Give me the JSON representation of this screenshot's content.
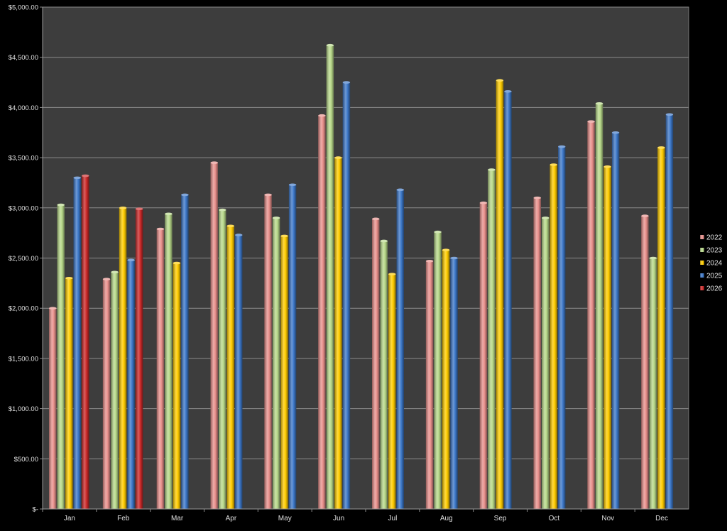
{
  "chart_data": {
    "type": "bar",
    "categories": [
      "Jan",
      "Feb",
      "Mar",
      "Apr",
      "May",
      "Jun",
      "Jul",
      "Aug",
      "Sep",
      "Oct",
      "Nov",
      "Dec"
    ],
    "y_ticks": [
      "$-",
      "$500.00",
      "$1,000.00",
      "$1,500.00",
      "$2,000.00",
      "$2,500.00",
      "$3,000.00",
      "$3,500.00",
      "$4,000.00",
      "$4,500.00",
      "$5,000.00"
    ],
    "ylim": [
      0,
      5000
    ],
    "grid": true,
    "legend_position": "right",
    "series": [
      {
        "name": "2022",
        "color": "#e8908c",
        "values": [
          2000,
          2290,
          2790,
          3450,
          3130,
          3920,
          2890,
          2470,
          3050,
          3100,
          3860,
          2920
        ]
      },
      {
        "name": "2023",
        "color": "#b8d98a",
        "values": [
          3030,
          2360,
          2940,
          2980,
          2900,
          4620,
          2670,
          2760,
          3380,
          2900,
          4040,
          2500
        ]
      },
      {
        "name": "2024",
        "color": "#ffcc00",
        "values": [
          2300,
          3000,
          2450,
          2820,
          2720,
          3500,
          2340,
          2580,
          4270,
          3430,
          3410,
          3600
        ]
      },
      {
        "name": "2025",
        "color": "#3d78c8",
        "values": [
          3300,
          2480,
          3130,
          2730,
          3230,
          4250,
          3180,
          2500,
          4160,
          3610,
          3750,
          3930
        ]
      },
      {
        "name": "2026",
        "color": "#cc2a2a",
        "values": [
          3320,
          2990,
          null,
          null,
          null,
          null,
          null,
          null,
          null,
          null,
          null,
          null
        ]
      }
    ]
  }
}
